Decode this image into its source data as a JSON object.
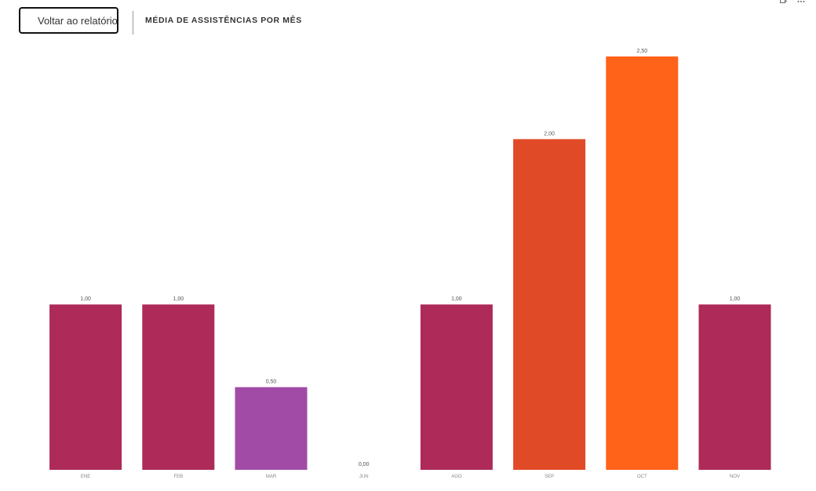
{
  "header": {
    "back_label": "Voltar ao relatório",
    "title": "MÉDIA DE ASSISTÊNCIAS POR MÊS"
  },
  "icons": {
    "back": "chevron-left-icon",
    "copy": "copy-icon",
    "more": "more-options-icon"
  },
  "chart_data": {
    "type": "bar",
    "categories": [
      "ENE",
      "FEB",
      "MAR",
      "JUN",
      "AGO",
      "SEP",
      "OCT",
      "NOV"
    ],
    "values": [
      1.0,
      1.0,
      0.5,
      0.0,
      1.0,
      2.0,
      2.5,
      1.0
    ],
    "data_labels": [
      "1,00",
      "1,00",
      "0,50",
      "0,00",
      "1,00",
      "2,00",
      "2,50",
      "1,00"
    ],
    "colors": [
      "#AD2A59",
      "#AD2A59",
      "#A14BA6",
      "#AD2A59",
      "#AD2A59",
      "#E04A26",
      "#FF6319",
      "#AD2A59"
    ],
    "ylim": [
      0,
      2.5
    ],
    "grid": false,
    "legend": "none"
  }
}
